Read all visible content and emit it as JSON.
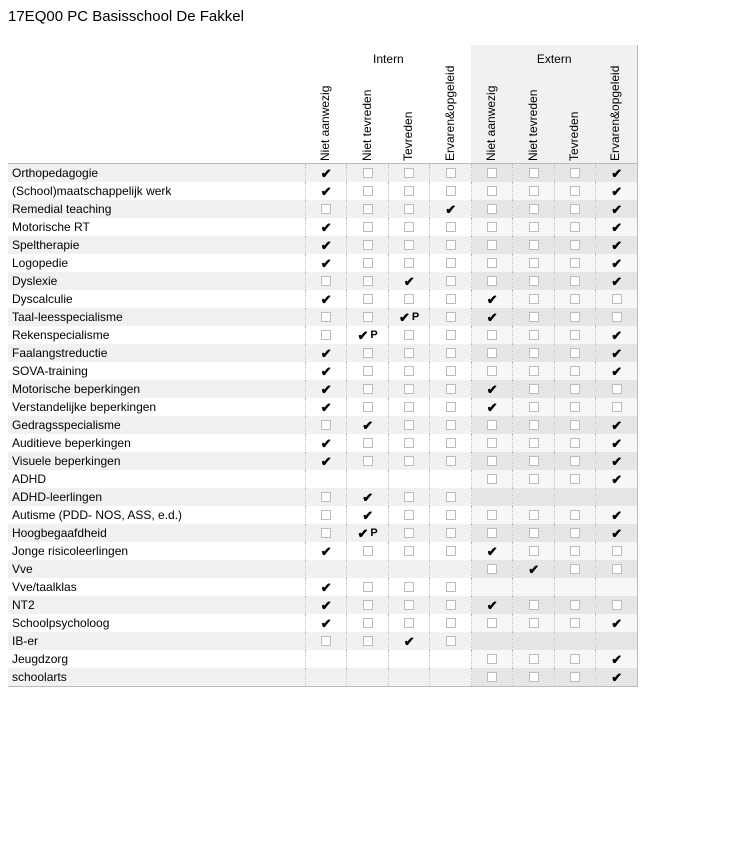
{
  "title": "17EQ00 PC Basisschool De Fakkel",
  "groups": {
    "intern": "Intern",
    "extern": "Extern"
  },
  "columns": [
    "Niet aanwezig",
    "Niet tevreden",
    "Tevreden",
    "Ervaren&opgeleid",
    "Niet aanwezig",
    "Niet tevreden",
    "Tevreden",
    "Ervaren&opgeleid"
  ],
  "column_group": [
    "intern",
    "intern",
    "intern",
    "intern",
    "extern",
    "extern",
    "extern",
    "extern"
  ],
  "legend": {
    "tick": "✔",
    "p": "P"
  },
  "colors": {
    "row_alt": "#f1f1f1",
    "extern_bg": "#f1f1f1",
    "extern_bg_alt": "#e6e6e6",
    "border_dotted": "#bbbbbb",
    "checkbox_border": "#bcbcbc",
    "text": "#000000"
  },
  "rows": [
    {
      "label": "Orthopedagogie",
      "cells": [
        "tick",
        "box",
        "box",
        "box",
        "box",
        "box",
        "box",
        "tick"
      ]
    },
    {
      "label": "(School)maatschappelijk werk",
      "cells": [
        "tick",
        "box",
        "box",
        "box",
        "box",
        "box",
        "box",
        "tick"
      ]
    },
    {
      "label": "Remedial teaching",
      "cells": [
        "box",
        "box",
        "box",
        "tick",
        "box",
        "box",
        "box",
        "tick"
      ]
    },
    {
      "label": "Motorische RT",
      "cells": [
        "tick",
        "box",
        "box",
        "box",
        "box",
        "box",
        "box",
        "tick"
      ]
    },
    {
      "label": "Speltherapie",
      "cells": [
        "tick",
        "box",
        "box",
        "box",
        "box",
        "box",
        "box",
        "tick"
      ]
    },
    {
      "label": "Logopedie",
      "cells": [
        "tick",
        "box",
        "box",
        "box",
        "box",
        "box",
        "box",
        "tick"
      ]
    },
    {
      "label": "Dyslexie",
      "cells": [
        "box",
        "box",
        "tick",
        "box",
        "box",
        "box",
        "box",
        "tick"
      ]
    },
    {
      "label": "Dyscalculie",
      "cells": [
        "tick",
        "box",
        "box",
        "box",
        "tick",
        "box",
        "box",
        "box"
      ]
    },
    {
      "label": "Taal-leesspecialisme",
      "cells": [
        "box",
        "box",
        "tickP",
        "box",
        "tick",
        "box",
        "box",
        "box"
      ]
    },
    {
      "label": "Rekenspecialisme",
      "cells": [
        "box",
        "tickP",
        "box",
        "box",
        "box",
        "box",
        "box",
        "tick"
      ]
    },
    {
      "label": "Faalangstreductie",
      "cells": [
        "tick",
        "box",
        "box",
        "box",
        "box",
        "box",
        "box",
        "tick"
      ]
    },
    {
      "label": "SOVA-training",
      "cells": [
        "tick",
        "box",
        "box",
        "box",
        "box",
        "box",
        "box",
        "tick"
      ]
    },
    {
      "label": "Motorische beperkingen",
      "cells": [
        "tick",
        "box",
        "box",
        "box",
        "tick",
        "box",
        "box",
        "box"
      ]
    },
    {
      "label": "Verstandelijke beperkingen",
      "cells": [
        "tick",
        "box",
        "box",
        "box",
        "tick",
        "box",
        "box",
        "box"
      ]
    },
    {
      "label": "Gedragsspecialisme",
      "cells": [
        "box",
        "tick",
        "box",
        "box",
        "box",
        "box",
        "box",
        "tick"
      ]
    },
    {
      "label": "Auditieve beperkingen",
      "cells": [
        "tick",
        "box",
        "box",
        "box",
        "box",
        "box",
        "box",
        "tick"
      ]
    },
    {
      "label": "Visuele beperkingen",
      "cells": [
        "tick",
        "box",
        "box",
        "box",
        "box",
        "box",
        "box",
        "tick"
      ]
    },
    {
      "label": "ADHD",
      "cells": [
        "blank",
        "blank",
        "blank",
        "blank",
        "box",
        "box",
        "box",
        "tick"
      ]
    },
    {
      "label": "ADHD-leerlingen",
      "cells": [
        "box",
        "tick",
        "box",
        "box",
        "blank",
        "blank",
        "blank",
        "blank"
      ]
    },
    {
      "label": "Autisme (PDD- NOS, ASS, e.d.)",
      "cells": [
        "box",
        "tick",
        "box",
        "box",
        "box",
        "box",
        "box",
        "tick"
      ]
    },
    {
      "label": "Hoogbegaafdheid",
      "cells": [
        "box",
        "tickP",
        "box",
        "box",
        "box",
        "box",
        "box",
        "tick"
      ]
    },
    {
      "label": "Jonge risicoleerlingen",
      "cells": [
        "tick",
        "box",
        "box",
        "box",
        "tick",
        "box",
        "box",
        "box"
      ]
    },
    {
      "label": "Vve",
      "cells": [
        "blank",
        "blank",
        "blank",
        "blank",
        "box",
        "tick",
        "box",
        "box"
      ]
    },
    {
      "label": "Vve/taalklas",
      "cells": [
        "tick",
        "box",
        "box",
        "box",
        "blank",
        "blank",
        "blank",
        "blank"
      ]
    },
    {
      "label": "NT2",
      "cells": [
        "tick",
        "box",
        "box",
        "box",
        "tick",
        "box",
        "box",
        "box"
      ]
    },
    {
      "label": "Schoolpsycholoog",
      "cells": [
        "tick",
        "box",
        "box",
        "box",
        "box",
        "box",
        "box",
        "tick"
      ]
    },
    {
      "label": "IB-er",
      "cells": [
        "box",
        "box",
        "tick",
        "box",
        "blank",
        "blank",
        "blank",
        "blank"
      ]
    },
    {
      "label": "Jeugdzorg",
      "cells": [
        "blank",
        "blank",
        "blank",
        "blank",
        "box",
        "box",
        "box",
        "tick"
      ]
    },
    {
      "label": "schoolarts",
      "cells": [
        "blank",
        "blank",
        "blank",
        "blank",
        "box",
        "box",
        "box",
        "tick"
      ]
    }
  ]
}
